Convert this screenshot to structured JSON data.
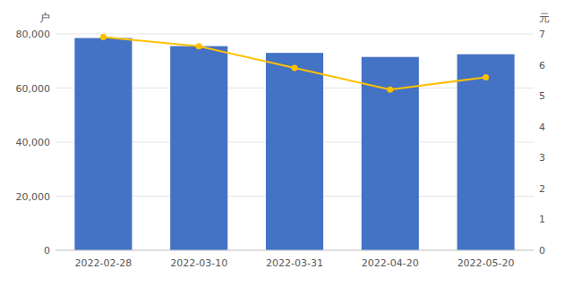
{
  "chart_data": {
    "type": "bar",
    "categories": [
      "2022-02-28",
      "2022-03-10",
      "2022-03-31",
      "2022-04-20",
      "2022-05-20"
    ],
    "series": [
      {
        "type": "bar",
        "color": "#4472C4",
        "values": [
          78500,
          75500,
          73000,
          71500,
          72500
        ]
      },
      {
        "type": "line",
        "color": "#FFC000",
        "marker": "circle",
        "axis": "y2",
        "values": [
          6.9,
          6.6,
          5.9,
          5.2,
          5.6
        ]
      }
    ],
    "ylabel": "户",
    "y2label": "元",
    "ylim": [
      0,
      80000
    ],
    "yticks": [
      0,
      {
        "value": 20000,
        "label": "20,000"
      },
      {
        "value": 40000,
        "label": "40,000"
      },
      {
        "value": 60000,
        "label": "60,000"
      },
      {
        "value": 80000,
        "label": "80,000"
      }
    ],
    "y2lim": [
      0,
      7
    ],
    "y2ticks": [
      0,
      1,
      2,
      3,
      4,
      5,
      6,
      7
    ],
    "grid": true
  }
}
